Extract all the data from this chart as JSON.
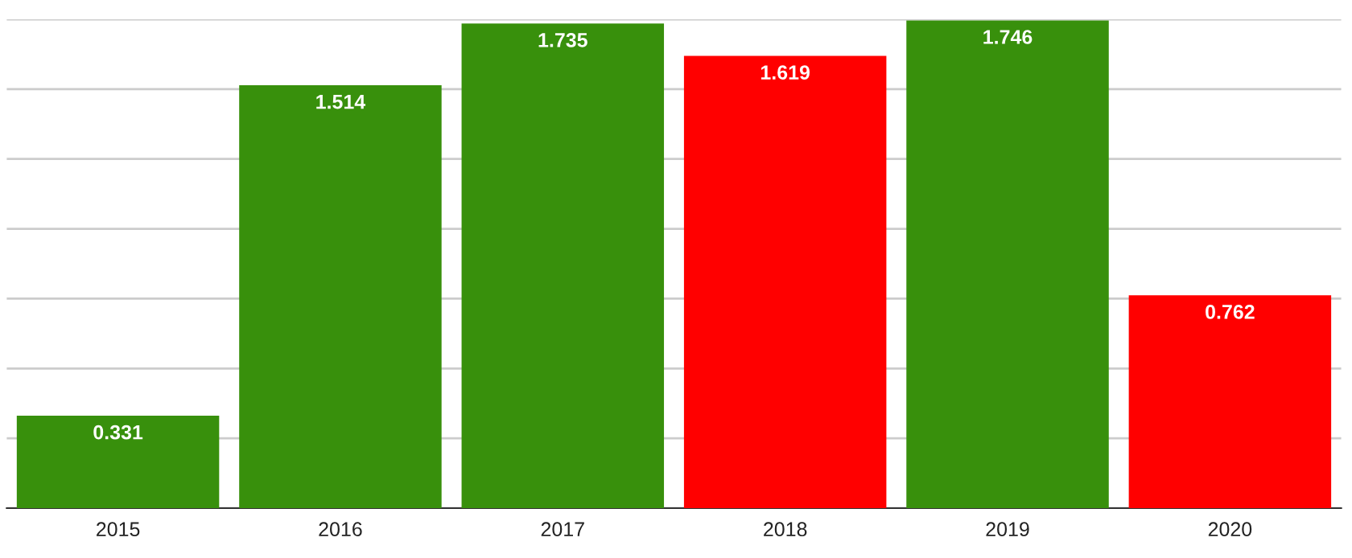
{
  "chart_data": {
    "type": "bar",
    "categories": [
      "2015",
      "2016",
      "2017",
      "2018",
      "2019",
      "2020"
    ],
    "values": [
      0.331,
      1.514,
      1.735,
      1.619,
      1.746,
      0.762
    ],
    "colors": [
      "#38900c",
      "#38900c",
      "#38900c",
      "#ff0000",
      "#38900c",
      "#ff0000"
    ],
    "ylim": [
      0,
      1.75
    ],
    "yticks": [
      {
        "value": 0,
        "label": null
      },
      {
        "value": 0.25,
        "label": null
      },
      {
        "value": 0.5,
        "label": null
      },
      {
        "value": 0.75,
        "label": null
      },
      {
        "value": 1.0,
        "label": null
      },
      {
        "value": 1.25,
        "label": null
      },
      {
        "value": 1.5,
        "label": null
      },
      {
        "value": 1.75,
        "label": null
      }
    ],
    "tick_labels": "x",
    "grid": "y",
    "data_labels": true
  }
}
